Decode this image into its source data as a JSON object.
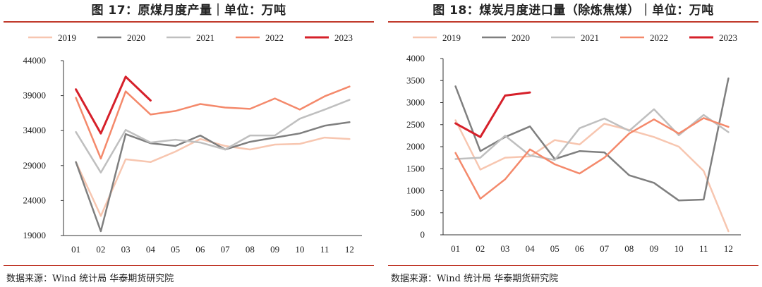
{
  "panels": [
    {
      "title": "图 17：原煤月度产量｜单位：万吨",
      "source": "数据来源：Wind  统计局  华泰期货研究院"
    },
    {
      "title": "图 18：煤炭月度进口量（除炼焦煤）｜单位：万吨",
      "source": "数据来源：Wind  统计局  华泰期货研究院"
    }
  ],
  "chart_data": [
    {
      "type": "line",
      "title": "图 17：原煤月度产量｜单位：万吨",
      "xlabel": "",
      "ylabel": "",
      "x": [
        "01",
        "02",
        "03",
        "04",
        "05",
        "06",
        "07",
        "08",
        "09",
        "10",
        "11",
        "12"
      ],
      "ylim": [
        19000,
        44000
      ],
      "yticks": [
        19000,
        24000,
        29000,
        34000,
        39000,
        44000
      ],
      "grid": false,
      "legend": "top",
      "series": [
        {
          "name": "2019",
          "color": "#f7c6b0",
          "width": 2.5,
          "values": [
            29500,
            21800,
            29900,
            29500,
            31000,
            32800,
            31800,
            31300,
            32000,
            32100,
            33000,
            32800
          ]
        },
        {
          "name": "2020",
          "color": "#7f7f7f",
          "width": 2.5,
          "values": [
            29500,
            19600,
            33500,
            32200,
            31800,
            33300,
            31300,
            32400,
            33000,
            33600,
            34700,
            35200
          ]
        },
        {
          "name": "2021",
          "color": "#bfbfbf",
          "width": 2.5,
          "values": [
            33800,
            28000,
            34100,
            32300,
            32700,
            32300,
            31300,
            33300,
            33300,
            35700,
            37000,
            38400
          ]
        },
        {
          "name": "2022",
          "color": "#f4896b",
          "width": 2.5,
          "values": [
            38700,
            30000,
            39600,
            36300,
            36800,
            37800,
            37300,
            37100,
            38600,
            37000,
            38900,
            40300
          ]
        },
        {
          "name": "2023",
          "color": "#d6202a",
          "width": 3,
          "values": [
            39900,
            33600,
            41700,
            38300,
            null,
            null,
            null,
            null,
            null,
            null,
            null,
            null
          ]
        }
      ]
    },
    {
      "type": "line",
      "title": "图 18：煤炭月度进口量（除炼焦煤）｜单位：万吨",
      "xlabel": "",
      "ylabel": "",
      "x": [
        "01",
        "02",
        "03",
        "04",
        "05",
        "06",
        "07",
        "08",
        "09",
        "10",
        "11",
        "12"
      ],
      "ylim": [
        0,
        4000
      ],
      "yticks": [
        0,
        500,
        1000,
        1500,
        2000,
        2500,
        3000,
        3500,
        4000
      ],
      "grid": false,
      "legend": "top",
      "series": [
        {
          "name": "2019",
          "color": "#f7c6b0",
          "width": 2.5,
          "values": [
            2600,
            1480,
            1750,
            1780,
            2150,
            2050,
            2520,
            2380,
            2220,
            2000,
            1450,
            80
          ]
        },
        {
          "name": "2020",
          "color": "#7f7f7f",
          "width": 2.5,
          "values": [
            3370,
            1900,
            2220,
            2460,
            1720,
            1900,
            1870,
            1350,
            1180,
            780,
            800,
            3550
          ]
        },
        {
          "name": "2021",
          "color": "#bfbfbf",
          "width": 2.5,
          "values": [
            1720,
            1750,
            2250,
            1800,
            1700,
            2420,
            2640,
            2360,
            2850,
            2260,
            2720,
            2330
          ]
        },
        {
          "name": "2022",
          "color": "#f4896b",
          "width": 2.5,
          "values": [
            1860,
            820,
            1260,
            1940,
            1600,
            1390,
            1750,
            2300,
            2620,
            2300,
            2650,
            2450
          ]
        },
        {
          "name": "2023",
          "color": "#d6202a",
          "width": 3,
          "values": [
            2530,
            2220,
            3160,
            3230,
            null,
            null,
            null,
            null,
            null,
            null,
            null,
            null
          ]
        }
      ]
    }
  ]
}
